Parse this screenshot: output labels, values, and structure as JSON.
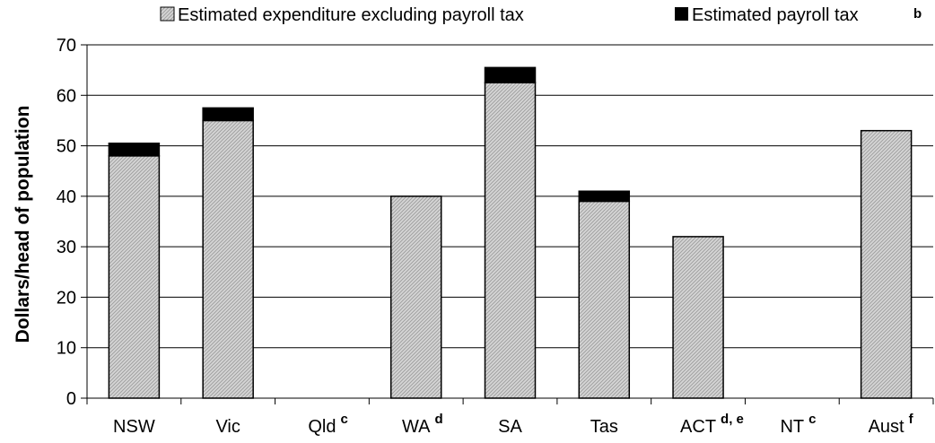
{
  "chart_data": {
    "type": "bar",
    "stacked": true,
    "categories": [
      "NSW",
      "Vic",
      "Qld",
      "WA",
      "SA",
      "Tas",
      "ACT",
      "NT",
      "Aust"
    ],
    "category_superscripts": [
      "",
      "",
      "c",
      "d",
      "",
      "",
      "d, e",
      "c",
      "f"
    ],
    "series": [
      {
        "name": "Estimated expenditure excluding payroll tax",
        "values": [
          48,
          55,
          null,
          40,
          62.5,
          39,
          32,
          null,
          53
        ],
        "color": "#c8c8c8",
        "pattern": "diagonal-hatch"
      },
      {
        "name": "Estimated payroll tax",
        "name_superscript": "b",
        "values": [
          2.5,
          2.5,
          null,
          0,
          3,
          2,
          0,
          null,
          0
        ],
        "color": "#000000"
      }
    ],
    "ylabel": "Dollars/head of population",
    "xlabel": "",
    "ylim": [
      0,
      70
    ],
    "yticks": [
      0,
      10,
      20,
      30,
      40,
      50,
      60,
      70
    ],
    "grid": true,
    "legend_position": "top"
  }
}
